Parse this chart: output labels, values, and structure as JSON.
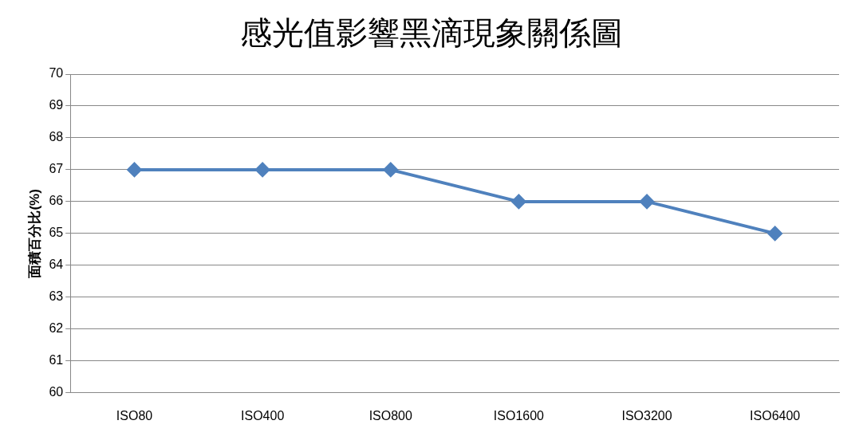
{
  "chart_data": {
    "type": "line",
    "title": "感光值影響黑滴現象關係圖",
    "ylabel": "面積百分比(%)",
    "categories": [
      "ISO80",
      "ISO400",
      "ISO800",
      "ISO1600",
      "ISO3200",
      "ISO6400"
    ],
    "series": [
      {
        "color": "#4f81bd",
        "values": [
          67,
          67,
          67,
          66,
          66,
          65
        ]
      }
    ],
    "ylim": [
      60,
      70
    ],
    "yticks": [
      60,
      61,
      62,
      63,
      64,
      65,
      66,
      67,
      68,
      69,
      70
    ],
    "grid": "y",
    "marker": "diamond"
  }
}
